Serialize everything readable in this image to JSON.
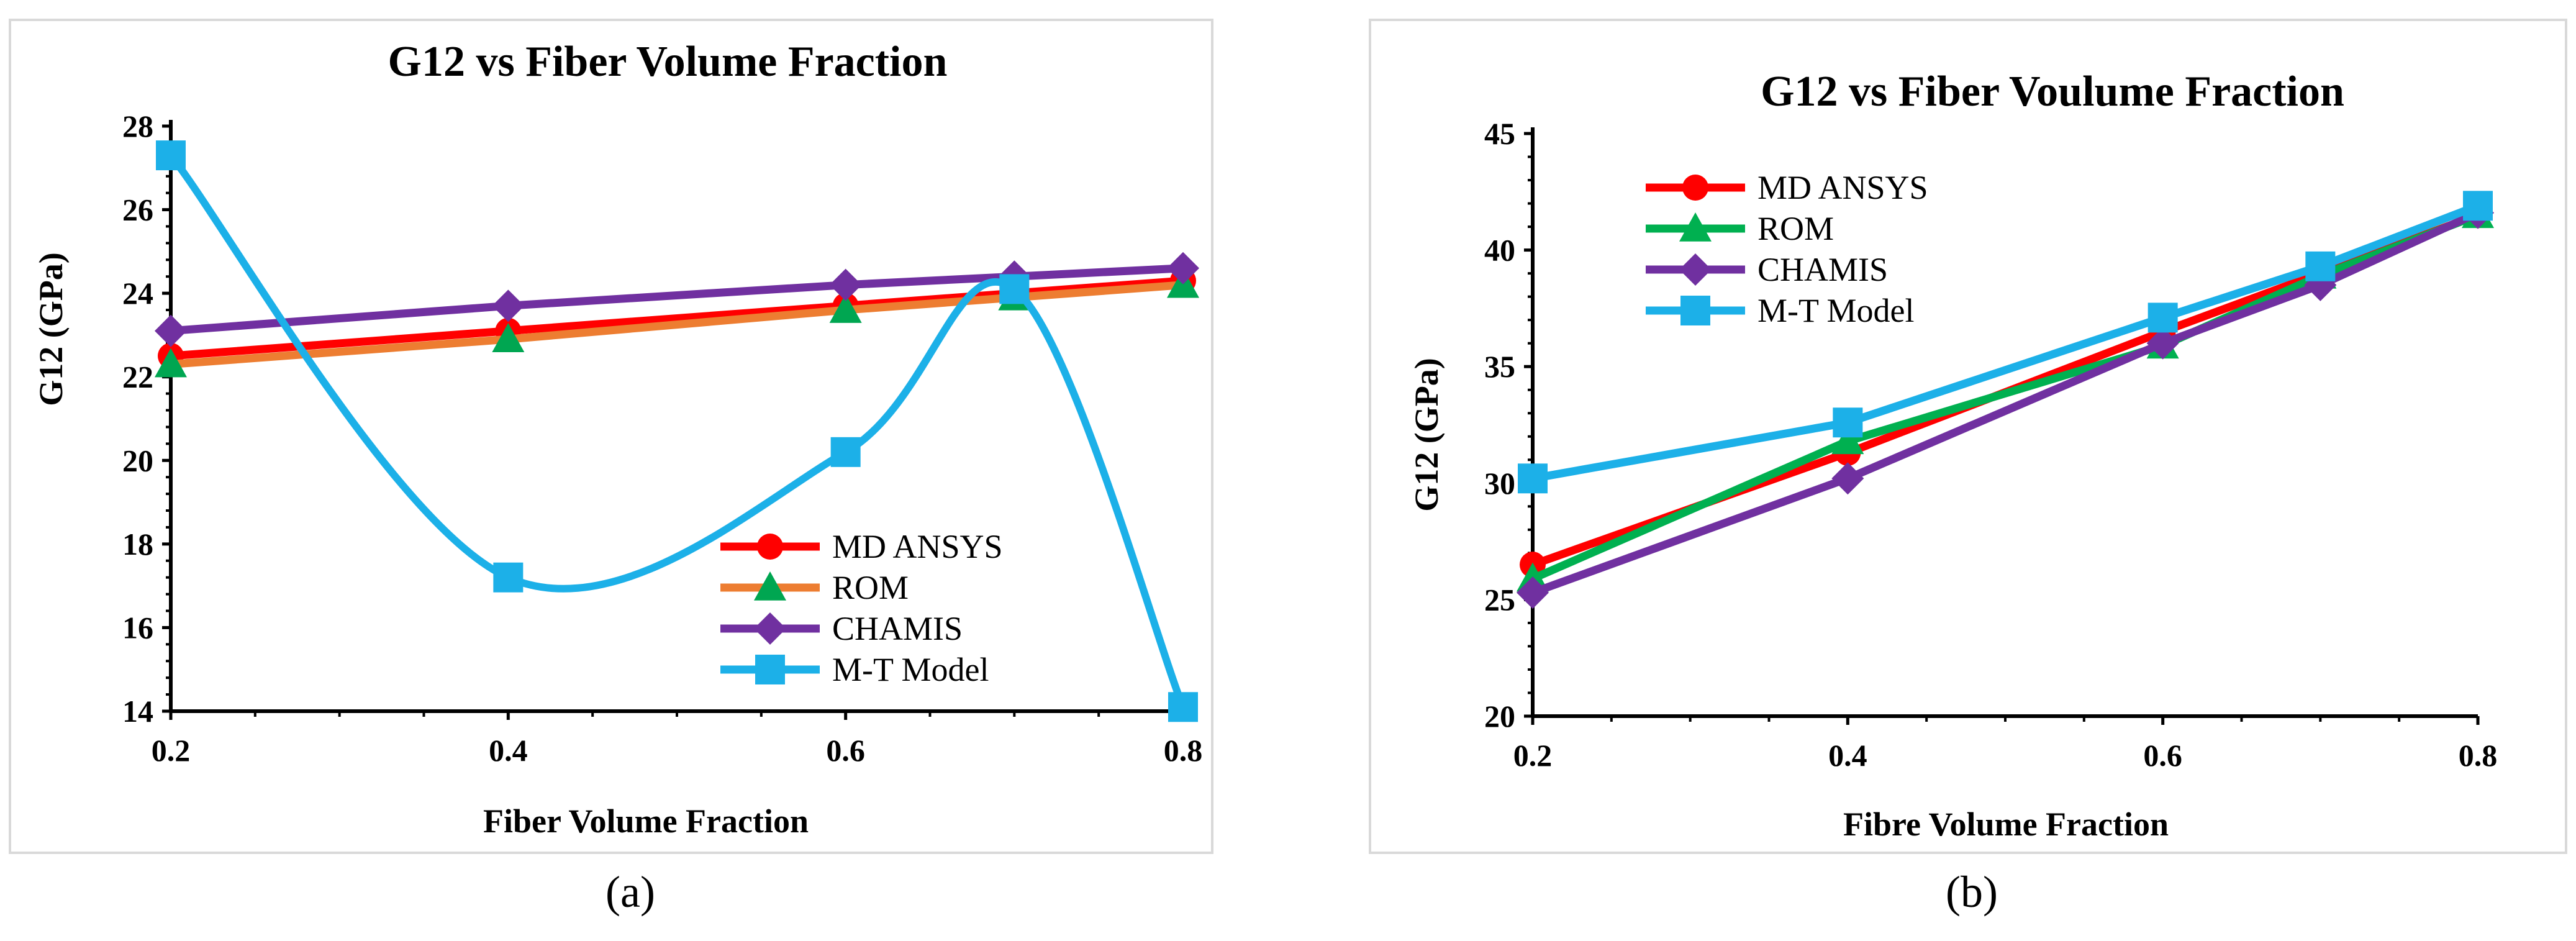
{
  "chart_data": [
    {
      "id": "a",
      "type": "line",
      "title": "G12 vs Fiber Volume Fraction",
      "xlabel": "Fiber Volume Fraction",
      "ylabel": "G12 (GPa)",
      "xlim": [
        0.2,
        0.8
      ],
      "ylim": [
        14,
        28
      ],
      "xticks": [
        0.2,
        0.4,
        0.6,
        0.8
      ],
      "xtick_labels": [
        "0.2",
        "0.4",
        "0.6",
        "0.8"
      ],
      "yticks": [
        14,
        16,
        18,
        20,
        22,
        24,
        26,
        28
      ],
      "ytick_labels": [
        "14",
        "16",
        "18",
        "20",
        "22",
        "24",
        "26",
        "28"
      ],
      "legend_position": "bottom-right",
      "grid": false,
      "caption": "(a)",
      "series": [
        {
          "name": "MD ANSYS",
          "color": "#ff0000",
          "marker": "circle",
          "smooth": false,
          "x": [
            0.2,
            0.4,
            0.6,
            0.7,
            0.8
          ],
          "y": [
            22.5,
            23.1,
            23.7,
            24.0,
            24.3
          ]
        },
        {
          "name": "ROM",
          "color": "#ed7d31",
          "marker_color": "#00a651",
          "marker": "triangle",
          "smooth": false,
          "x": [
            0.2,
            0.4,
            0.6,
            0.7,
            0.8
          ],
          "y": [
            22.3,
            22.9,
            23.6,
            23.9,
            24.2
          ]
        },
        {
          "name": "CHAMIS",
          "color": "#7030a0",
          "marker": "diamond",
          "smooth": false,
          "x": [
            0.2,
            0.4,
            0.6,
            0.7,
            0.8
          ],
          "y": [
            23.1,
            23.7,
            24.2,
            24.4,
            24.6
          ]
        },
        {
          "name": "M-T Model",
          "color": "#1cb0e8",
          "marker": "square",
          "smooth": true,
          "x": [
            0.2,
            0.4,
            0.6,
            0.7,
            0.8
          ],
          "y": [
            27.3,
            17.2,
            20.2,
            24.1,
            14.1
          ]
        }
      ]
    },
    {
      "id": "b",
      "type": "line",
      "title": "G12 vs Fiber Voulume Fraction",
      "xlabel": "Fibre Volume Fraction",
      "ylabel": "G12 (GPa)",
      "xlim": [
        0.2,
        0.8
      ],
      "ylim": [
        20,
        45
      ],
      "xticks": [
        0.2,
        0.4,
        0.6,
        0.8
      ],
      "xtick_labels": [
        "0.2",
        "0.4",
        "0.6",
        "0.8"
      ],
      "yticks": [
        20,
        25,
        30,
        35,
        40,
        45
      ],
      "ytick_labels": [
        "20",
        "25",
        "30",
        "35",
        "40",
        "45"
      ],
      "legend_position": "top-left",
      "grid": false,
      "caption": "(b)",
      "series": [
        {
          "name": "MD ANSYS",
          "color": "#ff0000",
          "marker": "circle",
          "smooth": false,
          "x": [
            0.2,
            0.4,
            0.6,
            0.7,
            0.8
          ],
          "y": [
            26.5,
            31.3,
            36.5,
            39.0,
            41.5
          ]
        },
        {
          "name": "ROM",
          "color": "#00b050",
          "marker": "triangle",
          "smooth": false,
          "x": [
            0.2,
            0.4,
            0.6,
            0.7,
            0.8
          ],
          "y": [
            25.9,
            31.8,
            35.9,
            38.9,
            41.5
          ]
        },
        {
          "name": "CHAMIS",
          "color": "#7030a0",
          "marker": "diamond",
          "smooth": false,
          "x": [
            0.2,
            0.4,
            0.6,
            0.7,
            0.8
          ],
          "y": [
            25.3,
            30.2,
            36.0,
            38.5,
            41.6
          ]
        },
        {
          "name": "M-T Model",
          "color": "#1cb0e8",
          "marker": "square",
          "smooth": false,
          "x": [
            0.2,
            0.4,
            0.6,
            0.7,
            0.8
          ],
          "y": [
            30.2,
            32.6,
            37.1,
            39.3,
            41.9
          ]
        }
      ]
    }
  ]
}
